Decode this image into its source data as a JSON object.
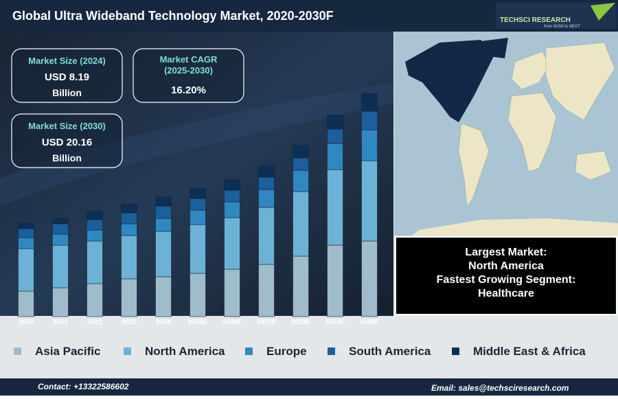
{
  "chart_data": {
    "type": "bar",
    "stacked": true,
    "title": "Global Ultra Wideband Technology Market, 2020-2030F",
    "categories": [
      "2020",
      "2021",
      "2022",
      "2023",
      "2024",
      "2025E",
      "2026F",
      "2027F",
      "2028F",
      "2029F",
      "2030F"
    ],
    "series": [
      {
        "name": "Asia Pacific",
        "color": "#9fbccb",
        "values": [
          37,
          42,
          48,
          55,
          58,
          63,
          69,
          76,
          88,
          104,
          110
        ]
      },
      {
        "name": "North America",
        "color": "#6cb2d6",
        "values": [
          62,
          62,
          62,
          63,
          66,
          71,
          75,
          83,
          94,
          110,
          117
        ]
      },
      {
        "name": "Europe",
        "color": "#2f88c2",
        "values": [
          16,
          16,
          16,
          17,
          19,
          21,
          23,
          26,
          31,
          38,
          45
        ]
      },
      {
        "name": "South America",
        "color": "#1b5f9c",
        "values": [
          13,
          15,
          15,
          16,
          18,
          17,
          17,
          18,
          18,
          21,
          27
        ]
      },
      {
        "name": "Middle East & Africa",
        "color": "#0c2f55",
        "values": [
          8,
          8,
          12,
          13,
          13,
          15,
          15,
          16,
          18,
          20,
          26
        ]
      }
    ],
    "legend": "bottom"
  },
  "boxes": [
    {
      "title": "Market Size (2024)",
      "lines": [
        "USD 8.19",
        "Billion"
      ]
    },
    {
      "title": "Market CAGR (2025-2030)",
      "lines": [
        "16.20%"
      ]
    },
    {
      "title": "Market Size (2030)",
      "lines": [
        "USD 20.16",
        "Billion"
      ]
    }
  ],
  "highlights": [
    "Largest Market:",
    "North America",
    "Fastest Growing Segment:",
    "Healthcare"
  ],
  "brand": {
    "name": "TECHSCI RESEARCH",
    "tagline": "from NOW to NEXT"
  },
  "footer": {
    "contact": "Contact: +13322586602",
    "email": "Email: sales@techsciresearch.com"
  }
}
